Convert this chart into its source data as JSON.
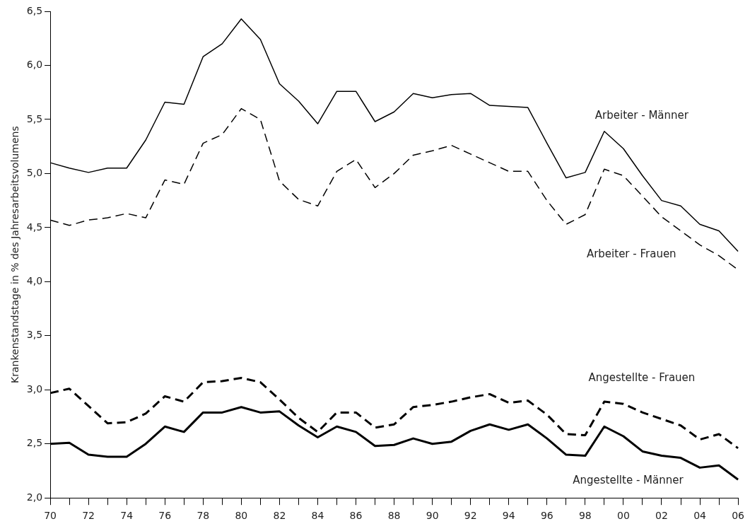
{
  "chart_data": {
    "type": "line",
    "ylabel": "Krankenstandstage in % des Jahresarbeitsvolumens",
    "categories": [
      "70",
      null,
      "72",
      null,
      "74",
      null,
      "76",
      null,
      "78",
      null,
      "80",
      null,
      "82",
      null,
      "84",
      null,
      "86",
      null,
      "88",
      null,
      "90",
      null,
      "92",
      null,
      "94",
      null,
      "96",
      null,
      "98",
      null,
      "00",
      null,
      "02",
      null,
      "04",
      null,
      "06"
    ],
    "series": [
      {
        "name": "Arbeiter - Männer",
        "color": "#000000",
        "line_style": "solid",
        "values": [
          5.1,
          5.05,
          5.01,
          5.05,
          5.05,
          5.31,
          5.66,
          5.64,
          6.08,
          6.2,
          6.43,
          6.24,
          5.83,
          5.67,
          5.46,
          5.76,
          5.76,
          5.48,
          5.57,
          5.74,
          5.7,
          5.73,
          5.74,
          5.63,
          5.62,
          5.61,
          5.28,
          4.96,
          5.01,
          5.39,
          5.23,
          4.98,
          4.75,
          4.7,
          4.53,
          4.47,
          4.28
        ]
      },
      {
        "name": "Arbeiter - Frauen",
        "color": "#000000",
        "line_style": "dashed",
        "values": [
          4.57,
          4.52,
          4.57,
          4.59,
          4.63,
          4.59,
          4.94,
          4.9,
          5.28,
          5.36,
          5.6,
          5.5,
          4.93,
          4.76,
          4.7,
          5.02,
          5.13,
          4.87,
          5.0,
          5.17,
          5.21,
          5.26,
          5.18,
          5.1,
          5.02,
          5.02,
          4.75,
          4.53,
          4.62,
          5.04,
          4.98,
          4.79,
          4.6,
          4.47,
          4.34,
          4.24,
          4.11
        ]
      },
      {
        "name": "Angestellte - Frauen",
        "color": "#000000",
        "line_style": "dashed",
        "values": [
          2.97,
          3.01,
          2.85,
          2.69,
          2.7,
          2.78,
          2.94,
          2.89,
          3.07,
          3.08,
          3.11,
          3.07,
          2.91,
          2.74,
          2.61,
          2.79,
          2.79,
          2.65,
          2.68,
          2.84,
          2.86,
          2.89,
          2.93,
          2.96,
          2.88,
          2.9,
          2.77,
          2.59,
          2.58,
          2.89,
          2.87,
          2.79,
          2.73,
          2.67,
          2.54,
          2.59,
          2.46
        ]
      },
      {
        "name": "Angestellte - Männer",
        "color": "#000000",
        "line_style": "solid",
        "values": [
          2.5,
          2.51,
          2.4,
          2.38,
          2.38,
          2.5,
          2.66,
          2.61,
          2.79,
          2.79,
          2.84,
          2.79,
          2.8,
          2.67,
          2.56,
          2.66,
          2.61,
          2.48,
          2.49,
          2.55,
          2.5,
          2.52,
          2.62,
          2.68,
          2.63,
          2.68,
          2.55,
          2.4,
          2.39,
          2.66,
          2.57,
          2.43,
          2.39,
          2.37,
          2.28,
          2.3,
          2.17
        ]
      }
    ],
    "ylim": [
      2.0,
      6.5
    ],
    "yticks": [
      {
        "value": 2.0,
        "label": "2,0"
      },
      {
        "value": 2.5,
        "label": "2,5"
      },
      {
        "value": 3.0,
        "label": "3,0"
      },
      {
        "value": 3.5,
        "label": "3,5"
      },
      {
        "value": 4.0,
        "label": "4,0"
      },
      {
        "value": 4.5,
        "label": "4,5"
      },
      {
        "value": 5.0,
        "label": "5,0"
      },
      {
        "value": 5.5,
        "label": "5,5"
      },
      {
        "value": 6.0,
        "label": "6,0"
      },
      {
        "value": 6.5,
        "label": "6,5"
      }
    ],
    "grid": false,
    "legend": false,
    "marker": "none"
  }
}
